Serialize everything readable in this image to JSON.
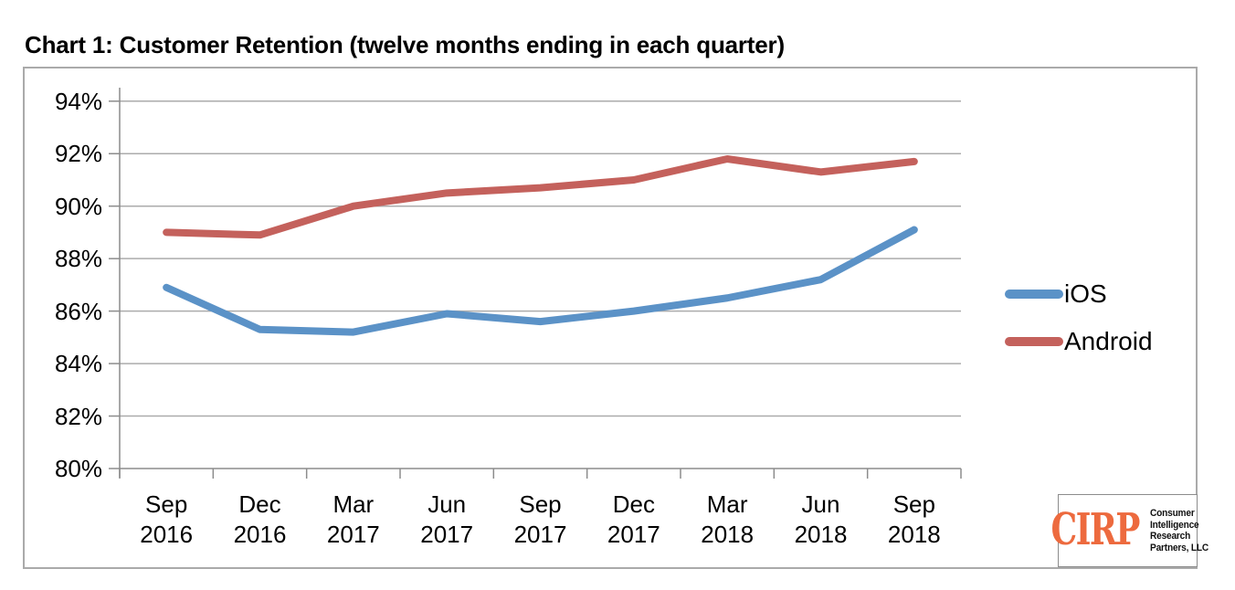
{
  "chart_data": {
    "type": "line",
    "title": "Chart 1: Customer Retention (twelve months ending in each quarter)",
    "categories": [
      "Sep 2016",
      "Dec 2016",
      "Mar 2017",
      "Jun 2017",
      "Sep 2017",
      "Dec 2017",
      "Mar 2018",
      "Jun 2018",
      "Sep 2018"
    ],
    "series": [
      {
        "name": "iOS",
        "color": "#5B92C7",
        "values": [
          86.9,
          85.3,
          85.2,
          85.9,
          85.6,
          86.0,
          86.5,
          87.2,
          89.1
        ]
      },
      {
        "name": "Android",
        "color": "#C4615C",
        "values": [
          89.0,
          88.9,
          90.0,
          90.5,
          90.7,
          91.0,
          91.8,
          91.3,
          91.7
        ]
      }
    ],
    "ylim": [
      80,
      94.5
    ],
    "yticks": [
      80,
      82,
      84,
      86,
      88,
      90,
      92,
      94
    ],
    "ytick_labels": [
      "80%",
      "82%",
      "84%",
      "86%",
      "88%",
      "90%",
      "92%",
      "94%"
    ],
    "grid": "horizontal",
    "legend_position": "right-outside"
  },
  "logo": {
    "abbr": "CIRP",
    "org_lines": [
      "Consumer",
      "Intelligence",
      "Research",
      "Partners, LLC"
    ],
    "accent_color": "#ED6A3E"
  },
  "colors": {
    "gridline": "#ABABAB",
    "axis": "#8C8C8C",
    "outer_border": "#AAAAAA",
    "text": "#000000"
  }
}
